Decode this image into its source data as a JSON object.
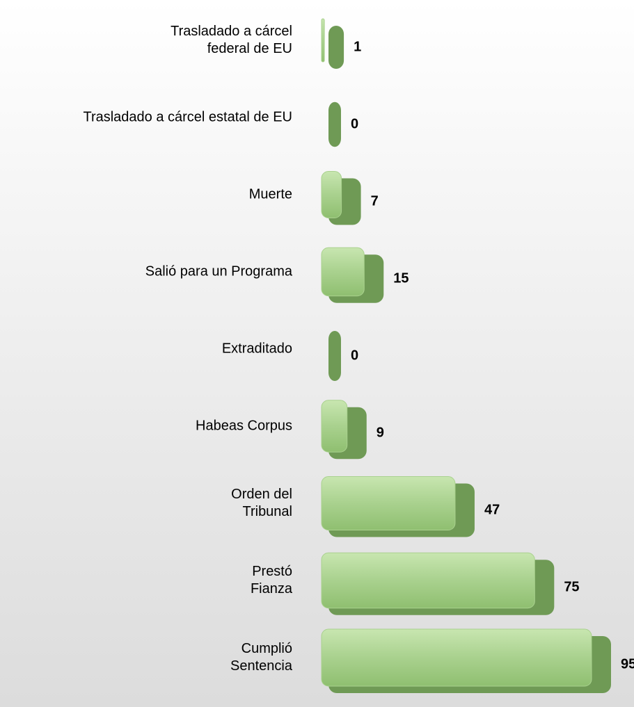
{
  "chart_data": {
    "type": "bar",
    "orientation": "horizontal",
    "categories": [
      "Trasladado a cárcel\nfederal de EU",
      "Trasladado a cárcel estatal de EU",
      "Muerte",
      "Salió para un Programa",
      "Extraditado",
      "Habeas Corpus",
      "Orden del\nTribunal",
      "Prestó\nFianza",
      "Cumplió\nSentencia"
    ],
    "values": [
      1,
      0,
      7,
      15,
      0,
      9,
      47,
      75,
      95
    ],
    "color": "#a9d18e"
  }
}
